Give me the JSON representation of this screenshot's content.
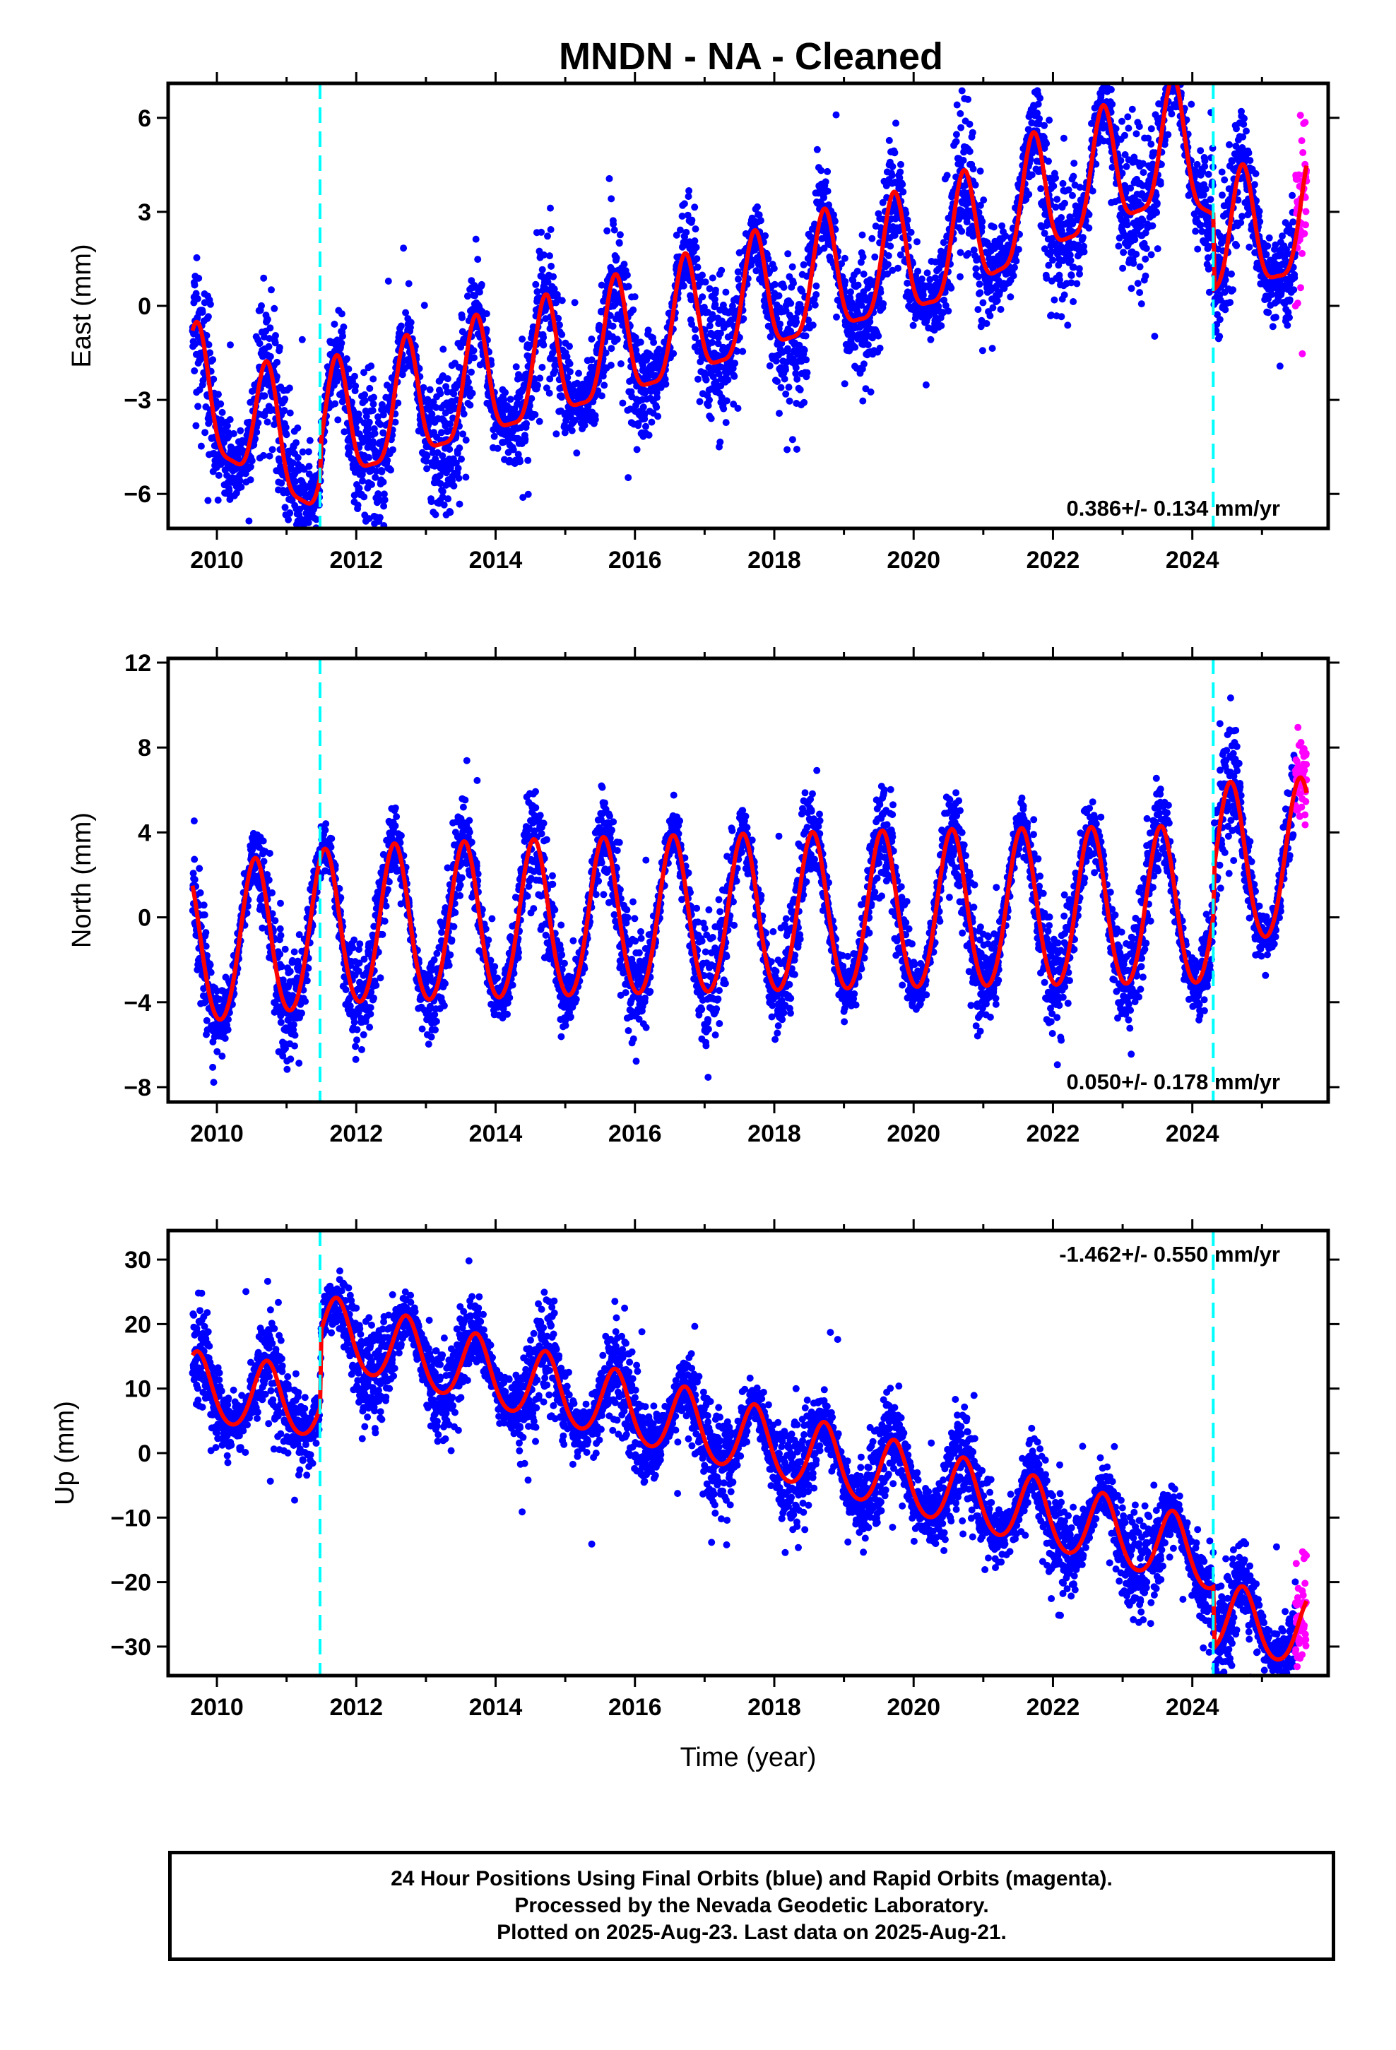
{
  "title": "MNDN  - NA - Cleaned",
  "colors": {
    "final_orbits": "#0000ff",
    "rapid_orbits": "#ff00ff",
    "model_fit": "#ff0000",
    "equipment_change": "#00ffff",
    "frame": "#000000"
  },
  "chart_data": [
    {
      "type": "scatter",
      "name": "east",
      "ylabel": "East (mm)",
      "xlabel": "",
      "xlim": [
        2009.3,
        2025.95
      ],
      "ylim": [
        -7.1,
        7.1
      ],
      "xticks": [
        "2010",
        "2012",
        "2014",
        "2016",
        "2018",
        "2020",
        "2022",
        "2024"
      ],
      "yticks": [
        "6",
        "3",
        "0",
        "−3",
        "−6"
      ],
      "ytick_values": [
        6,
        3,
        0,
        -3,
        -6
      ],
      "x_tick_labels_shown": true,
      "rate_text": "0.386+/- 0.134 mm/yr",
      "rate_position": "bottom-right",
      "equipment_changes": [
        2011.48,
        2024.3
      ],
      "data_span": [
        2009.65,
        2025.64
      ],
      "rapid_span": [
        2025.48,
        2025.64
      ],
      "fit_model": {
        "trend_mm_per_yr": 0.386,
        "annual_amplitude": 1.9,
        "annual_peak_month_fraction": 0.72,
        "semiannual_amplitude": 0.5,
        "scatter_mm": 1.05,
        "anchor_values": [
          [
            2009.65,
            0.2
          ],
          [
            2011.48,
            -2.8
          ],
          [
            2011.5,
            -1.8
          ],
          [
            2016.5,
            -0.5
          ],
          [
            2018.5,
            0.2
          ],
          [
            2020.5,
            0.5
          ],
          [
            2021.7,
            1.5
          ],
          [
            2023.8,
            2.5
          ],
          [
            2024.3,
            1.7
          ],
          [
            2024.32,
            -0.7
          ],
          [
            2025.64,
            -0.6
          ]
        ]
      }
    },
    {
      "type": "scatter",
      "name": "north",
      "ylabel": "North (mm)",
      "xlabel": "",
      "xlim": [
        2009.3,
        2025.95
      ],
      "ylim": [
        -8.7,
        12.2
      ],
      "xticks": [
        "2010",
        "2012",
        "2014",
        "2016",
        "2018",
        "2020",
        "2022",
        "2024"
      ],
      "yticks": [
        "12",
        "8",
        "4",
        "0",
        "−4",
        "−8"
      ],
      "ytick_values": [
        12,
        8,
        4,
        0,
        -4,
        -8
      ],
      "x_tick_labels_shown": true,
      "rate_text": "0.050+/- 0.178 mm/yr",
      "rate_position": "bottom-right",
      "equipment_changes": [
        2011.48,
        2024.3
      ],
      "data_span": [
        2009.65,
        2025.64
      ],
      "rapid_span": [
        2025.48,
        2025.64
      ],
      "fit_model": {
        "trend_mm_per_yr": 0.05,
        "annual_amplitude": 3.7,
        "annual_peak_month_fraction": 0.55,
        "semiannual_amplitude": 0.3,
        "scatter_mm": 1.1,
        "anchor_values": [
          [
            2009.65,
            -1.2
          ],
          [
            2012.0,
            -0.3
          ],
          [
            2016.0,
            -0.1
          ],
          [
            2020.0,
            0.0
          ],
          [
            2024.3,
            0.0
          ],
          [
            2024.32,
            2.0
          ],
          [
            2025.64,
            2.2
          ]
        ]
      }
    },
    {
      "type": "scatter",
      "name": "up",
      "ylabel": "Up (mm)",
      "xlabel": "Time (year)",
      "xlim": [
        2009.3,
        2025.95
      ],
      "ylim": [
        -34.5,
        34.5
      ],
      "xticks": [
        "2010",
        "2012",
        "2014",
        "2016",
        "2018",
        "2020",
        "2022",
        "2024"
      ],
      "yticks": [
        "30",
        "20",
        "10",
        "0",
        "−10",
        "−20",
        "−30"
      ],
      "ytick_values": [
        30,
        20,
        10,
        0,
        -10,
        -20,
        -30
      ],
      "x_tick_labels_shown": true,
      "rate_text": "-1.462+/- 0.550 mm/yr",
      "rate_position": "top-right",
      "equipment_changes": [
        2011.48,
        2024.3
      ],
      "data_span": [
        2009.65,
        2025.64
      ],
      "rapid_span": [
        2025.48,
        2025.64
      ],
      "fit_model": {
        "trend_mm_per_yr": -1.462,
        "annual_amplitude": 5.3,
        "annual_peak_month_fraction": 0.72,
        "semiannual_amplitude": 0.6,
        "scatter_mm": 3.6,
        "anchor_values": [
          [
            2009.65,
            -1.5
          ],
          [
            2011.48,
            -1.5
          ],
          [
            2011.5,
            10.0
          ],
          [
            2024.3,
            -6.5
          ],
          [
            2024.32,
            -16.0
          ],
          [
            2025.64,
            -16.0
          ]
        ]
      }
    }
  ],
  "caption": {
    "line1": "24 Hour Positions Using Final Orbits (blue) and Rapid Orbits (magenta).",
    "line2": "Processed by the Nevada Geodetic Laboratory.",
    "line3": "Plotted on 2025-Aug-23. Last data on 2025-Aug-21."
  }
}
